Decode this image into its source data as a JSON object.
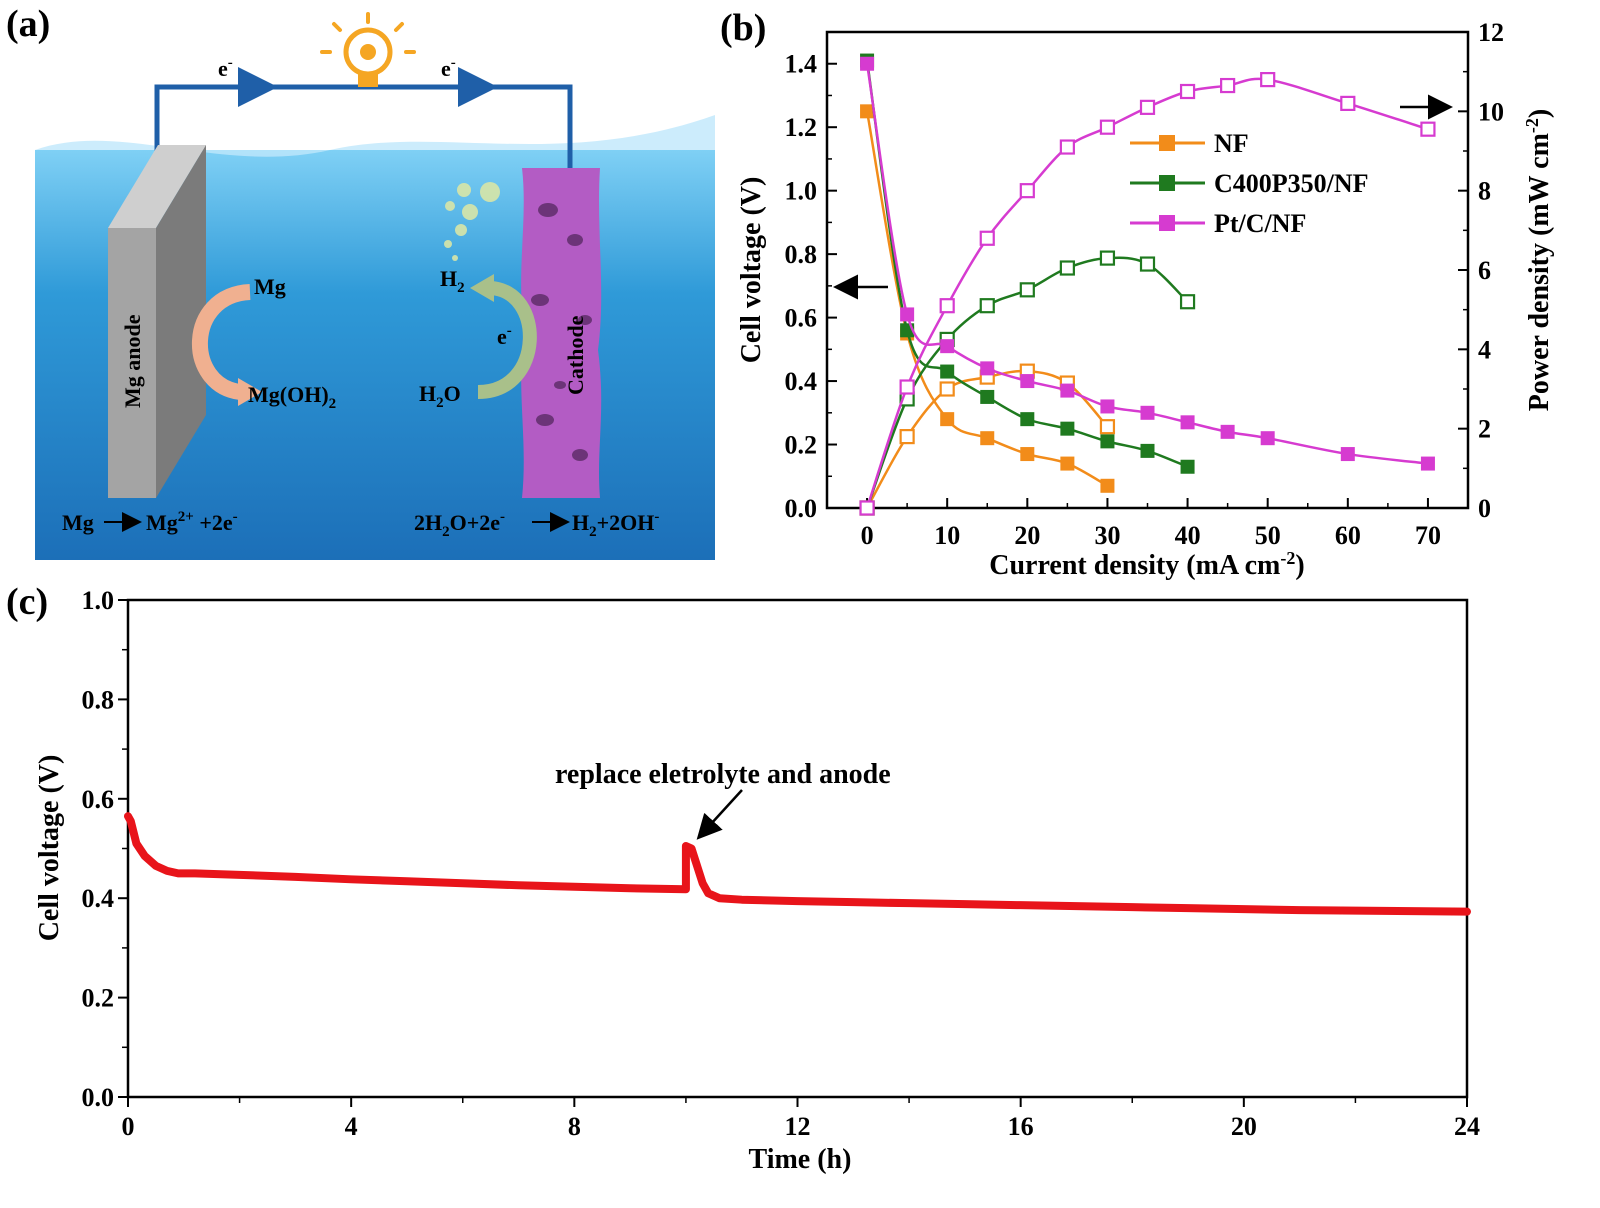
{
  "panels": {
    "a": "(a)",
    "b": "(b)",
    "c": "(c)"
  },
  "diagram": {
    "electron_label": "e",
    "electron_sup": "-",
    "anode_label": "Mg anode",
    "cathode_label": "Cathode",
    "mg": "Mg",
    "mgoh2_base": "Mg(OH)",
    "mgoh2_sub": "2",
    "h2_base": "H",
    "h2_sub": "2",
    "h2o_h": "H",
    "h2o_sub": "2",
    "h2o_o": "O",
    "anode_eq": {
      "lhs": "Mg",
      "rhs": "Mg",
      "rhs_sup": "2+",
      "tail": " +2e",
      "tail_sup": "-"
    },
    "cathode_eq": {
      "p1": "2H",
      "p1_sub": "2",
      "p2": "O+2e",
      "p2_sup": "-",
      "p3": "H",
      "p3_sub": "2",
      "p4": "+2OH",
      "p4_sup": "-"
    },
    "colors": {
      "water": "#2f8fd0",
      "wire": "#1f5fa8",
      "anode": "#9a9a9a",
      "cathode": "#b35cc4",
      "bulb": "#f5a623",
      "arrow_mg": "#f0b090",
      "arrow_h2": "#a9c08a"
    }
  },
  "chart_data": [
    {
      "id": "b",
      "type": "line",
      "title": "",
      "xlabel_main": "Current density (mA cm",
      "xlabel_sup": "-2",
      "xlabel_end": ")",
      "ylabel": "Cell voltage (V)",
      "y2label_main": "Power density (mW cm",
      "y2label_sup": "-2",
      "y2label_end": ")",
      "xlim": [
        -5,
        75
      ],
      "ylim": [
        0,
        1.5
      ],
      "y2lim": [
        0,
        12
      ],
      "xticks": [
        "0",
        "10",
        "20",
        "30",
        "40",
        "50",
        "60",
        "70"
      ],
      "yticks": [
        "0.0",
        "0.2",
        "0.4",
        "0.6",
        "0.8",
        "1.0",
        "1.2",
        "1.4"
      ],
      "y2ticks": [
        "0",
        "2",
        "4",
        "6",
        "8",
        "10",
        "12"
      ],
      "legend_position": "upper-middle",
      "series": [
        {
          "name": "NF",
          "color": "#f28c1a",
          "voltage": {
            "x": [
              0,
              5,
              10,
              15,
              20,
              25,
              30
            ],
            "y": [
              1.25,
              0.55,
              0.28,
              0.22,
              0.17,
              0.14,
              0.07
            ]
          },
          "power": {
            "x": [
              0,
              5,
              10,
              15,
              20,
              25,
              30
            ],
            "y": [
              0,
              1.8,
              3.0,
              3.3,
              3.45,
              3.15,
              2.05
            ]
          }
        },
        {
          "name": "C400P350/NF",
          "color": "#1f7a1f",
          "voltage": {
            "x": [
              0,
              5,
              10,
              15,
              20,
              25,
              30,
              35,
              40
            ],
            "y": [
              1.41,
              0.56,
              0.43,
              0.35,
              0.28,
              0.25,
              0.21,
              0.18,
              0.13
            ]
          },
          "power": {
            "x": [
              0,
              5,
              10,
              15,
              20,
              25,
              30,
              35,
              40
            ],
            "y": [
              0,
              2.75,
              4.25,
              5.1,
              5.5,
              6.05,
              6.3,
              6.15,
              5.2
            ]
          }
        },
        {
          "name": "Pt/C/NF",
          "color": "#d63bd0",
          "voltage": {
            "x": [
              0,
              5,
              10,
              15,
              20,
              25,
              30,
              35,
              40,
              45,
              50,
              60,
              70
            ],
            "y": [
              1.4,
              0.61,
              0.51,
              0.44,
              0.4,
              0.37,
              0.32,
              0.3,
              0.27,
              0.24,
              0.22,
              0.17,
              0.14
            ]
          },
          "power": {
            "x": [
              0,
              5,
              10,
              15,
              20,
              25,
              30,
              35,
              40,
              45,
              50,
              60,
              70
            ],
            "y": [
              0,
              3.05,
              5.1,
              6.8,
              8.0,
              9.1,
              9.6,
              10.1,
              10.5,
              10.65,
              10.8,
              10.2,
              9.55
            ]
          }
        }
      ],
      "annotations": {
        "left_arrow": "points to left axis",
        "right_arrow": "points to right axis"
      }
    },
    {
      "id": "c",
      "type": "line",
      "title": "",
      "xlabel": "Time (h)",
      "ylabel": "Cell voltage (V)",
      "xlim": [
        0,
        24
      ],
      "ylim": [
        0,
        1.0
      ],
      "xticks": [
        "0",
        "4",
        "8",
        "12",
        "16",
        "20",
        "24"
      ],
      "yticks": [
        "0.0",
        "0.2",
        "0.4",
        "0.6",
        "0.8",
        "1.0"
      ],
      "annotation": "replace eletrolyte and anode",
      "annotation_at": {
        "x": 10.15,
        "y": 0.505
      },
      "series": [
        {
          "name": "voltage",
          "color": "#e8141a",
          "x": [
            0,
            0.05,
            0.15,
            0.3,
            0.5,
            0.7,
            0.9,
            1.2,
            2,
            3,
            4,
            5,
            6,
            7,
            8,
            9,
            10,
            10.0,
            10.1,
            10.2,
            10.3,
            10.4,
            10.6,
            11,
            12,
            13,
            14,
            15,
            16,
            17,
            18,
            19,
            20,
            21,
            22,
            23,
            24
          ],
          "y": [
            0.565,
            0.555,
            0.51,
            0.485,
            0.465,
            0.455,
            0.45,
            0.45,
            0.447,
            0.443,
            0.438,
            0.434,
            0.43,
            0.426,
            0.423,
            0.42,
            0.418,
            0.505,
            0.5,
            0.465,
            0.43,
            0.41,
            0.4,
            0.397,
            0.394,
            0.392,
            0.39,
            0.388,
            0.386,
            0.384,
            0.382,
            0.38,
            0.378,
            0.376,
            0.375,
            0.374,
            0.373
          ]
        }
      ]
    }
  ]
}
